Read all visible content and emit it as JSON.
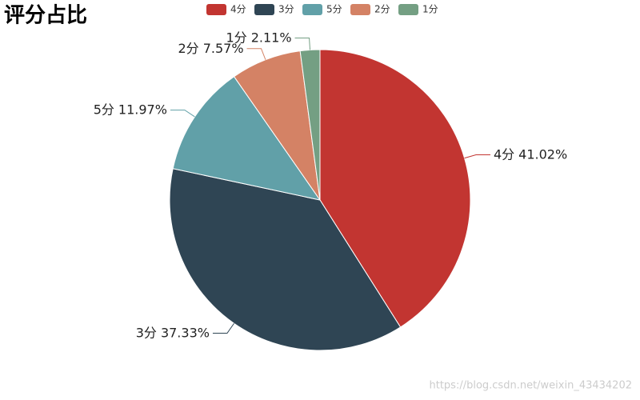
{
  "chart_data": {
    "type": "pie",
    "title": "评分占比",
    "categories": [
      "4分",
      "3分",
      "5分",
      "2分",
      "1分"
    ],
    "values": [
      41.02,
      37.33,
      11.97,
      7.57,
      2.11
    ],
    "value_labels": [
      "41.02%",
      "37.33%",
      "11.97%",
      "7.57%",
      "2.11%"
    ],
    "colors": [
      "#c23531",
      "#2f4554",
      "#61a0a8",
      "#d48265",
      "#749f83"
    ],
    "legend": "top"
  },
  "watermark": "https://blog.csdn.net/weixin_43434202"
}
